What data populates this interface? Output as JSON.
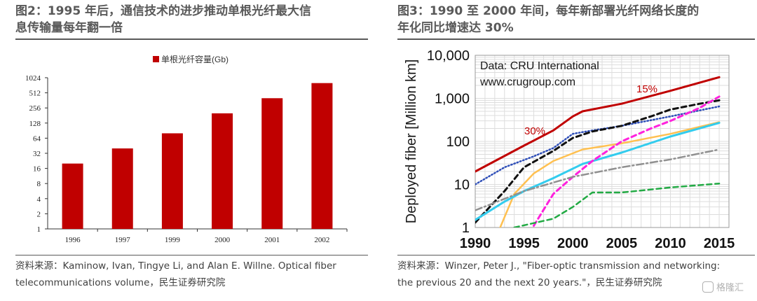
{
  "left": {
    "title_line1": "图2：1995 年后，通信技术的进步推动单根光纤最大信",
    "title_line2": "息传输量每年翻一倍",
    "source_line1": "资料来源：Kaminow, Ivan, Tingye Li, and Alan E. Willne. Optical fiber",
    "source_line2": "telecommunications volume，民生证券研究院"
  },
  "right": {
    "title_line1": "图3：1990 至 2000 年间，每年新部署光纤网络长度的",
    "title_line2": "年化同比增速达 30%",
    "source_line1": "资料来源：Winzer, Peter J., \"Fiber-optic transmission and networking:",
    "source_line2": "the previous 20 and the next 20 years.\"，民生证券研究院",
    "watermark": "格隆汇"
  },
  "chart_data": [
    {
      "type": "bar",
      "categories": [
        "1996",
        "1997",
        "1999",
        "2000",
        "2001",
        "2002"
      ],
      "series": [
        {
          "name": "单根光纤容量(Gb)",
          "values": [
            20,
            40,
            80,
            200,
            400,
            800
          ]
        }
      ],
      "yscale": "log2",
      "yticks": [
        "1",
        "2",
        "4",
        "8",
        "16",
        "32",
        "64",
        "128",
        "256",
        "512",
        "1024"
      ],
      "ylim": [
        1,
        1024
      ],
      "colors": {
        "bar": "#C00000"
      },
      "legend": "top-center"
    },
    {
      "type": "line",
      "ylabel": "Deployed fiber [Million km]",
      "annotation": "Data: CRU International\nwww.crugroup.com",
      "annotation_lines": [
        "Data: CRU International",
        "www.crugroup.com"
      ],
      "rate_labels": [
        {
          "text": "15%",
          "color": "#C00000"
        },
        {
          "text": "30%",
          "color": "#C00000"
        }
      ],
      "yscale": "log10",
      "ylim": [
        1,
        10000
      ],
      "xlim": [
        1990,
        2016
      ],
      "xticks": [
        "1990",
        "1995",
        "2000",
        "2005",
        "2010",
        "2015"
      ],
      "yticks": [
        "1",
        "10",
        "100",
        "1,000",
        "10,000"
      ],
      "grid": true,
      "series": [
        {
          "style": "solid",
          "color": "#C00000",
          "width": 3,
          "x": [
            1990,
            1995,
            1998,
            2000,
            2001,
            2005,
            2010,
            2015
          ],
          "y": [
            20,
            80,
            180,
            380,
            500,
            750,
            1500,
            3100
          ]
        },
        {
          "style": "dotted",
          "color": "#2F4FB8",
          "width": 2.5,
          "x": [
            1990,
            1993,
            1996,
            1998,
            2000,
            2002,
            2005,
            2010,
            2015
          ],
          "y": [
            10,
            25,
            45,
            70,
            150,
            180,
            230,
            380,
            650
          ]
        },
        {
          "style": "dashed",
          "color": "#111111",
          "width": 3,
          "x": [
            1990,
            1993,
            1995,
            1998,
            2000,
            2002,
            2005,
            2008,
            2010,
            2013,
            2015
          ],
          "y": [
            1.3,
            7,
            25,
            60,
            120,
            170,
            230,
            380,
            550,
            750,
            900
          ]
        },
        {
          "style": "solid",
          "color": "#FFC050",
          "width": 2.5,
          "x": [
            1992,
            1994,
            1996,
            1998,
            2001,
            2005,
            2010,
            2015
          ],
          "y": [
            0.5,
            6,
            18,
            35,
            65,
            90,
            150,
            280
          ]
        },
        {
          "style": "solid",
          "color": "#33CCEE",
          "width": 3,
          "x": [
            1990,
            1993,
            1995,
            1998,
            2001,
            2005,
            2010,
            2015
          ],
          "y": [
            1.5,
            4,
            7,
            14,
            30,
            55,
            130,
            270
          ]
        },
        {
          "style": "dashed",
          "color": "#FF22DD",
          "width": 3,
          "x": [
            1996,
            1998,
            2000,
            2002,
            2005,
            2008,
            2010,
            2013,
            2015
          ],
          "y": [
            1.1,
            6,
            15,
            35,
            100,
            200,
            300,
            600,
            1100
          ]
        },
        {
          "style": "dashdot",
          "color": "#909090",
          "width": 2.5,
          "x": [
            1990,
            1995,
            2000,
            2005,
            2010,
            2015
          ],
          "y": [
            2.5,
            7,
            15,
            25,
            38,
            65
          ]
        },
        {
          "style": "dashed",
          "color": "#22AA44",
          "width": 2.5,
          "x": [
            1994,
            1998,
            2000,
            2002,
            2005,
            2010,
            2015
          ],
          "y": [
            1,
            1.6,
            3,
            6.5,
            6.5,
            8.5,
            10.5
          ]
        }
      ]
    }
  ]
}
